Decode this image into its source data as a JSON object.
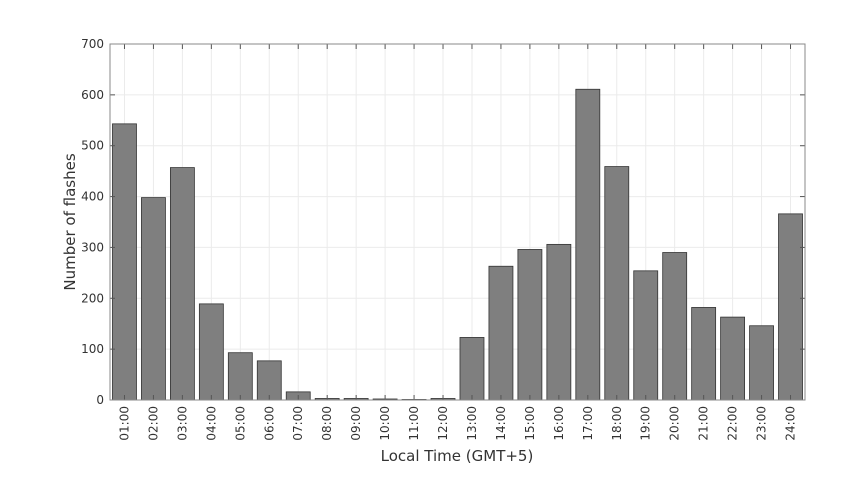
{
  "chart_data": {
    "type": "bar",
    "title": "",
    "xlabel": "Local Time (GMT+5)",
    "ylabel": "Number of flashes",
    "ylim": [
      0,
      700
    ],
    "yticks": [
      0,
      100,
      200,
      300,
      400,
      500,
      600,
      700
    ],
    "grid": true,
    "bar_color": "#7f7f7f",
    "categories": [
      "01:00",
      "02:00",
      "03:00",
      "04:00",
      "05:00",
      "06:00",
      "07:00",
      "08:00",
      "09:00",
      "10:00",
      "11:00",
      "12:00",
      "13:00",
      "14:00",
      "15:00",
      "16:00",
      "17:00",
      "18:00",
      "19:00",
      "20:00",
      "21:00",
      "22:00",
      "23:00",
      "24:00"
    ],
    "values": [
      543,
      398,
      457,
      189,
      93,
      77,
      16,
      3,
      3,
      2,
      1,
      3,
      123,
      263,
      296,
      306,
      611,
      459,
      254,
      290,
      182,
      163,
      146,
      366
    ]
  }
}
